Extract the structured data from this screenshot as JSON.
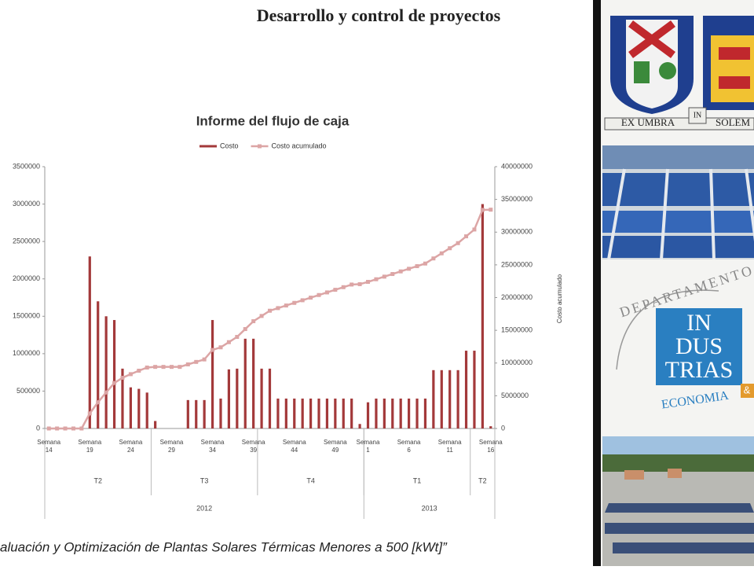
{
  "slide": {
    "title": "Desarrollo y control de proyectos",
    "footer": "aluación y Optimización de Plantas Solares Térmicas Menores a 500 [kWt]”"
  },
  "chart_data": {
    "type": "bar",
    "title": "Informe del flujo de caja",
    "y2_label": "Costo acumulado",
    "categories": [
      "Semana 14",
      null,
      null,
      null,
      null,
      "Semana 19",
      null,
      null,
      null,
      null,
      "Semana 24",
      null,
      null,
      null,
      null,
      "Semana 29",
      null,
      null,
      null,
      null,
      "Semana 34",
      null,
      null,
      null,
      null,
      "Semana 39",
      null,
      null,
      null,
      null,
      "Semana 44",
      null,
      null,
      null,
      null,
      "Semana 49",
      null,
      null,
      null,
      "Semana 1",
      null,
      null,
      null,
      null,
      "Semana 6",
      null,
      null,
      null,
      null,
      "Semana 11",
      null,
      null,
      null,
      null,
      "Semana 16"
    ],
    "series": [
      {
        "name": "Costo",
        "type": "bar",
        "color": "#a3393a",
        "values": [
          0,
          0,
          0,
          0,
          0,
          2300000,
          1700000,
          1500000,
          1450000,
          800000,
          550000,
          530000,
          480000,
          100000,
          0,
          0,
          0,
          380000,
          380000,
          380000,
          1450000,
          400000,
          790000,
          800000,
          1200000,
          1200000,
          800000,
          800000,
          400000,
          400000,
          400000,
          400000,
          400000,
          400000,
          400000,
          400000,
          400000,
          400000,
          60000,
          350000,
          400000,
          400000,
          400000,
          400000,
          400000,
          400000,
          400000,
          780000,
          780000,
          780000,
          780000,
          1040000,
          1040000,
          3000000,
          30000
        ]
      },
      {
        "name": "Costo acumulado",
        "type": "line",
        "axis": "y2",
        "color": "#dca5a5",
        "values": [
          0,
          0,
          0,
          0,
          0,
          2300000,
          4000000,
          5500000,
          6950000,
          7750000,
          8300000,
          8830000,
          9310000,
          9410000,
          9410000,
          9410000,
          9410000,
          9790000,
          10170000,
          10550000,
          12000000,
          12400000,
          13190000,
          13990000,
          15190000,
          16390000,
          17190000,
          17990000,
          18390000,
          18790000,
          19190000,
          19590000,
          19990000,
          20390000,
          20790000,
          21190000,
          21590000,
          21990000,
          22050000,
          22400000,
          22800000,
          23200000,
          23600000,
          24000000,
          24400000,
          24800000,
          25200000,
          25980000,
          26760000,
          27540000,
          28320000,
          29360000,
          30400000,
          33400000,
          33430000
        ]
      }
    ],
    "ylim": [
      0,
      3500000
    ],
    "yticks": [
      0,
      500000,
      1000000,
      1500000,
      2000000,
      2500000,
      3000000,
      3500000
    ],
    "y2lim": [
      0,
      40000000
    ],
    "y2ticks": [
      0,
      5000000,
      10000000,
      15000000,
      20000000,
      25000000,
      30000000,
      35000000,
      40000000
    ],
    "grid": false,
    "quarters": [
      {
        "label": "T2",
        "span": 13
      },
      {
        "label": "T3",
        "span": 13
      },
      {
        "label": "T4",
        "span": 13
      },
      {
        "label": "T1",
        "span": 13
      },
      {
        "label": "T2",
        "span": 3
      }
    ],
    "years": [
      {
        "label": "2012",
        "span": 39
      },
      {
        "label": "2013",
        "span": 16
      }
    ]
  },
  "sidebar": {
    "crest": {
      "left": "EX UMBRA",
      "middle": "IN",
      "right": "SOLEM"
    },
    "department": {
      "arc": "DEPARTAMENTO",
      "name": [
        "IN",
        "DUS",
        "TRIAS"
      ],
      "sub": "ECONOMIA",
      "amp": "&"
    }
  }
}
